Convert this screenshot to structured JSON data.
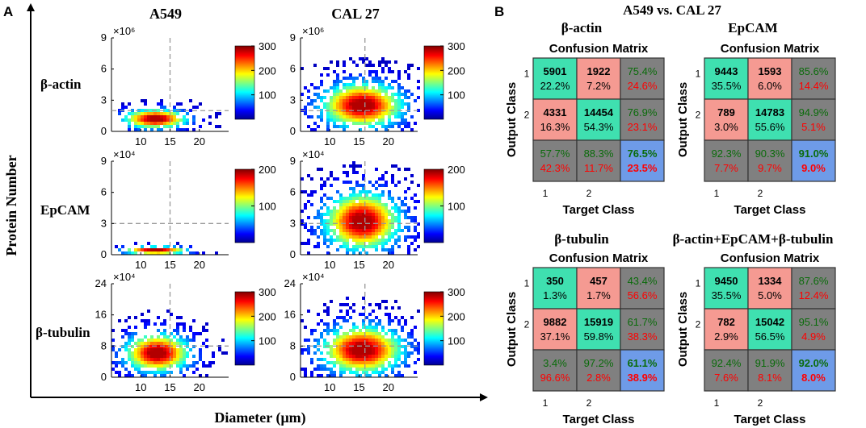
{
  "panel_a": {
    "letter": "A",
    "y_label": "Protein Number",
    "x_label": "Diameter (μm)",
    "columns": [
      "A549",
      "CAL 27"
    ],
    "rows": [
      "β-actin",
      "EpCAM",
      "β-tubulin"
    ],
    "colors": {
      "low": "#00008f",
      "high": "#7f0000"
    }
  },
  "panel_b": {
    "letter": "B",
    "title": "A549 vs. CAL 27",
    "matrix_title": "Confusion Matrix",
    "y_axis": "Output Class",
    "x_axis": "Target Class",
    "class_labels": [
      "1",
      "2"
    ],
    "colors": {
      "correct": "#3fe0b0",
      "wrong": "#f59a92",
      "summary": "#808080",
      "total": "#6e9be8",
      "good_text": "#0a6b0a",
      "bad_text": "#ff0000"
    }
  },
  "chart_data": [
    {
      "type": "heatmap",
      "title": "β-actin",
      "column": "A549",
      "multiplier": "×10⁶",
      "x_ticks": [
        "10",
        "15",
        "20"
      ],
      "y_ticks": [
        "0",
        "3",
        "6",
        "9"
      ],
      "ylim": [
        0,
        9
      ],
      "colorbar_ticks": [
        "100",
        "200",
        "300"
      ],
      "colorbar_range": [
        0,
        300
      ],
      "guide_x": 15,
      "guide_y": 2,
      "density_center": [
        12.5,
        1.2
      ],
      "density_spread": [
        3.5,
        0.6
      ]
    },
    {
      "type": "heatmap",
      "title": "β-actin",
      "column": "CAL 27",
      "multiplier": "×10⁶",
      "x_ticks": [
        "10",
        "15",
        "20"
      ],
      "y_ticks": [
        "0",
        "3",
        "6",
        "9"
      ],
      "ylim": [
        0,
        9
      ],
      "colorbar_ticks": [
        "100",
        "200",
        "300"
      ],
      "colorbar_range": [
        0,
        300
      ],
      "guide_x": 16,
      "guide_y": 2,
      "density_center": [
        15.5,
        2.5
      ],
      "density_spread": [
        4.5,
        1.4
      ]
    },
    {
      "type": "heatmap",
      "title": "EpCAM",
      "column": "A549",
      "multiplier": "×10⁴",
      "x_ticks": [
        "10",
        "15",
        "20"
      ],
      "y_ticks": [
        "0",
        "3",
        "6",
        "9"
      ],
      "ylim": [
        0,
        9
      ],
      "colorbar_ticks": [
        "100",
        "200"
      ],
      "colorbar_range": [
        0,
        200
      ],
      "guide_x": 15,
      "guide_y": 3,
      "density_center": [
        12.5,
        0.4
      ],
      "density_spread": [
        3.5,
        0.25
      ]
    },
    {
      "type": "heatmap",
      "title": "EpCAM",
      "column": "CAL 27",
      "multiplier": "×10⁴",
      "x_ticks": [
        "10",
        "15",
        "20"
      ],
      "y_ticks": [
        "0",
        "3",
        "6",
        "9"
      ],
      "ylim": [
        0,
        9
      ],
      "colorbar_ticks": [
        "100",
        "200"
      ],
      "colorbar_range": [
        0,
        200
      ],
      "guide_x": 16,
      "guide_y": 3,
      "density_center": [
        15.5,
        3.2
      ],
      "density_spread": [
        4.2,
        1.8
      ]
    },
    {
      "type": "heatmap",
      "title": "β-tubulin",
      "column": "A549",
      "multiplier": "×10⁴",
      "x_ticks": [
        "10",
        "15",
        "20"
      ],
      "y_ticks": [
        "0",
        "8",
        "16",
        "24"
      ],
      "ylim": [
        0,
        24
      ],
      "colorbar_ticks": [
        "100",
        "200",
        "300"
      ],
      "colorbar_range": [
        0,
        300
      ],
      "guide_x": 15,
      "guide_y": 8,
      "density_center": [
        12.8,
        6.2
      ],
      "density_spread": [
        3.6,
        3.2
      ]
    },
    {
      "type": "heatmap",
      "title": "β-tubulin",
      "column": "CAL 27",
      "multiplier": "×10⁴",
      "x_ticks": [
        "10",
        "15",
        "20"
      ],
      "y_ticks": [
        "0",
        "8",
        "16",
        "24"
      ],
      "ylim": [
        0,
        24
      ],
      "colorbar_ticks": [
        "100",
        "200",
        "300"
      ],
      "colorbar_range": [
        0,
        300
      ],
      "guide_x": 16,
      "guide_y": 8,
      "density_center": [
        15.5,
        7.0
      ],
      "density_spread": [
        4.5,
        4.0
      ]
    },
    {
      "type": "table",
      "title": "β-actin",
      "cells": [
        [
          {
            "n": "5901",
            "p": "22.2%"
          },
          {
            "n": "1922",
            "p": "7.2%"
          },
          {
            "a": "75.4%",
            "b": "24.6%"
          }
        ],
        [
          {
            "n": "4331",
            "p": "16.3%"
          },
          {
            "n": "14454",
            "p": "54.3%"
          },
          {
            "a": "76.9%",
            "b": "23.1%"
          }
        ],
        [
          {
            "a": "57.7%",
            "b": "42.3%"
          },
          {
            "a": "88.3%",
            "b": "11.7%"
          },
          {
            "a": "76.5%",
            "b": "23.5%"
          }
        ]
      ]
    },
    {
      "type": "table",
      "title": "EpCAM",
      "cells": [
        [
          {
            "n": "9443",
            "p": "35.5%"
          },
          {
            "n": "1593",
            "p": "6.0%"
          },
          {
            "a": "85.6%",
            "b": "14.4%"
          }
        ],
        [
          {
            "n": "789",
            "p": "3.0%"
          },
          {
            "n": "14783",
            "p": "55.6%"
          },
          {
            "a": "94.9%",
            "b": "5.1%"
          }
        ],
        [
          {
            "a": "92.3%",
            "b": "7.7%"
          },
          {
            "a": "90.3%",
            "b": "9.7%"
          },
          {
            "a": "91.0%",
            "b": "9.0%"
          }
        ]
      ]
    },
    {
      "type": "table",
      "title": "β-tubulin",
      "cells": [
        [
          {
            "n": "350",
            "p": "1.3%"
          },
          {
            "n": "457",
            "p": "1.7%"
          },
          {
            "a": "43.4%",
            "b": "56.6%"
          }
        ],
        [
          {
            "n": "9882",
            "p": "37.1%"
          },
          {
            "n": "15919",
            "p": "59.8%"
          },
          {
            "a": "61.7%",
            "b": "38.3%"
          }
        ],
        [
          {
            "a": "3.4%",
            "b": "96.6%"
          },
          {
            "a": "97.2%",
            "b": "2.8%"
          },
          {
            "a": "61.1%",
            "b": "38.9%"
          }
        ]
      ]
    },
    {
      "type": "table",
      "title": "β-actin+EpCAM+β-tubulin",
      "cells": [
        [
          {
            "n": "9450",
            "p": "35.5%"
          },
          {
            "n": "1334",
            "p": "5.0%"
          },
          {
            "a": "87.6%",
            "b": "12.4%"
          }
        ],
        [
          {
            "n": "782",
            "p": "2.9%"
          },
          {
            "n": "15042",
            "p": "56.5%"
          },
          {
            "a": "95.1%",
            "b": "4.9%"
          }
        ],
        [
          {
            "a": "92.4%",
            "b": "7.6%"
          },
          {
            "a": "91.9%",
            "b": "8.1%"
          },
          {
            "a": "92.0%",
            "b": "8.0%"
          }
        ]
      ]
    }
  ]
}
